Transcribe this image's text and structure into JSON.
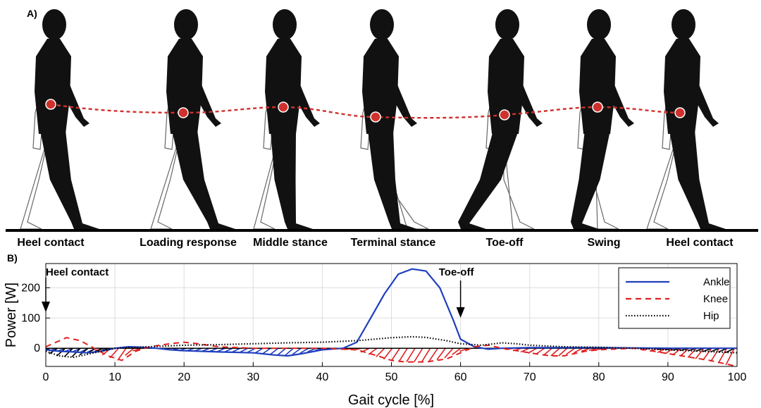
{
  "panel_a": {
    "label": "A)",
    "phases": [
      "Heel contact",
      "Loading response",
      "Middle stance",
      "Terminal stance",
      "Toe-off",
      "Swing",
      "Heel contact"
    ],
    "colors": {
      "figure": "#111111",
      "outline": "#666666",
      "com_path": "#d0312d"
    }
  },
  "panel_b": {
    "label": "B)"
  },
  "chart_data": {
    "type": "line",
    "xlabel": "Gait cycle [%]",
    "ylabel": "Power [W]",
    "xlim": [
      0,
      100
    ],
    "ylim": [
      -60,
      280
    ],
    "xticks": [
      0,
      10,
      20,
      30,
      40,
      50,
      60,
      70,
      80,
      90,
      100
    ],
    "yticks": [
      0,
      100,
      200
    ],
    "grid": true,
    "legend_position": "top-right",
    "annotations": [
      {
        "text": "Heel contact",
        "x": 0
      },
      {
        "text": "Toe-off",
        "x": 60
      }
    ],
    "series": [
      {
        "name": "Ankle",
        "color": "#1f3fbf",
        "style": "solid",
        "points": [
          [
            0,
            -5
          ],
          [
            2,
            -10
          ],
          [
            4,
            -12
          ],
          [
            6,
            -15
          ],
          [
            8,
            -10
          ],
          [
            10,
            0
          ],
          [
            12,
            5
          ],
          [
            14,
            3
          ],
          [
            16,
            0
          ],
          [
            18,
            -5
          ],
          [
            20,
            -8
          ],
          [
            25,
            -12
          ],
          [
            30,
            -15
          ],
          [
            33,
            -22
          ],
          [
            35,
            -25
          ],
          [
            37,
            -18
          ],
          [
            40,
            -5
          ],
          [
            43,
            0
          ],
          [
            45,
            20
          ],
          [
            47,
            100
          ],
          [
            49,
            180
          ],
          [
            51,
            245
          ],
          [
            53,
            262
          ],
          [
            55,
            255
          ],
          [
            57,
            200
          ],
          [
            59,
            90
          ],
          [
            60,
            30
          ],
          [
            62,
            5
          ],
          [
            64,
            -3
          ],
          [
            66,
            0
          ],
          [
            70,
            2
          ],
          [
            80,
            2
          ],
          [
            90,
            0
          ],
          [
            100,
            0
          ]
        ]
      },
      {
        "name": "Knee",
        "color": "#e02020",
        "style": "dashed",
        "points": [
          [
            0,
            5
          ],
          [
            2,
            25
          ],
          [
            3,
            35
          ],
          [
            5,
            25
          ],
          [
            7,
            0
          ],
          [
            9,
            -25
          ],
          [
            11,
            -40
          ],
          [
            13,
            -10
          ],
          [
            15,
            5
          ],
          [
            18,
            15
          ],
          [
            20,
            20
          ],
          [
            22,
            15
          ],
          [
            25,
            5
          ],
          [
            30,
            0
          ],
          [
            40,
            0
          ],
          [
            45,
            -5
          ],
          [
            48,
            -25
          ],
          [
            50,
            -40
          ],
          [
            52,
            -45
          ],
          [
            55,
            -45
          ],
          [
            58,
            -35
          ],
          [
            60,
            -15
          ],
          [
            62,
            5
          ],
          [
            64,
            10
          ],
          [
            66,
            0
          ],
          [
            70,
            -15
          ],
          [
            73,
            -25
          ],
          [
            75,
            -25
          ],
          [
            78,
            -10
          ],
          [
            80,
            -5
          ],
          [
            85,
            0
          ],
          [
            88,
            -10
          ],
          [
            92,
            -25
          ],
          [
            96,
            -40
          ],
          [
            100,
            -60
          ]
        ]
      },
      {
        "name": "Hip",
        "color": "#000000",
        "style": "dotted",
        "points": [
          [
            0,
            -10
          ],
          [
            2,
            -25
          ],
          [
            4,
            -30
          ],
          [
            6,
            -20
          ],
          [
            8,
            -10
          ],
          [
            10,
            0
          ],
          [
            15,
            5
          ],
          [
            20,
            10
          ],
          [
            25,
            12
          ],
          [
            30,
            15
          ],
          [
            35,
            18
          ],
          [
            40,
            20
          ],
          [
            45,
            25
          ],
          [
            50,
            35
          ],
          [
            53,
            38
          ],
          [
            55,
            36
          ],
          [
            58,
            25
          ],
          [
            60,
            15
          ],
          [
            63,
            10
          ],
          [
            66,
            18
          ],
          [
            68,
            15
          ],
          [
            70,
            10
          ],
          [
            75,
            5
          ],
          [
            80,
            3
          ],
          [
            85,
            0
          ],
          [
            90,
            -5
          ],
          [
            95,
            -10
          ],
          [
            100,
            -15
          ]
        ]
      }
    ]
  }
}
